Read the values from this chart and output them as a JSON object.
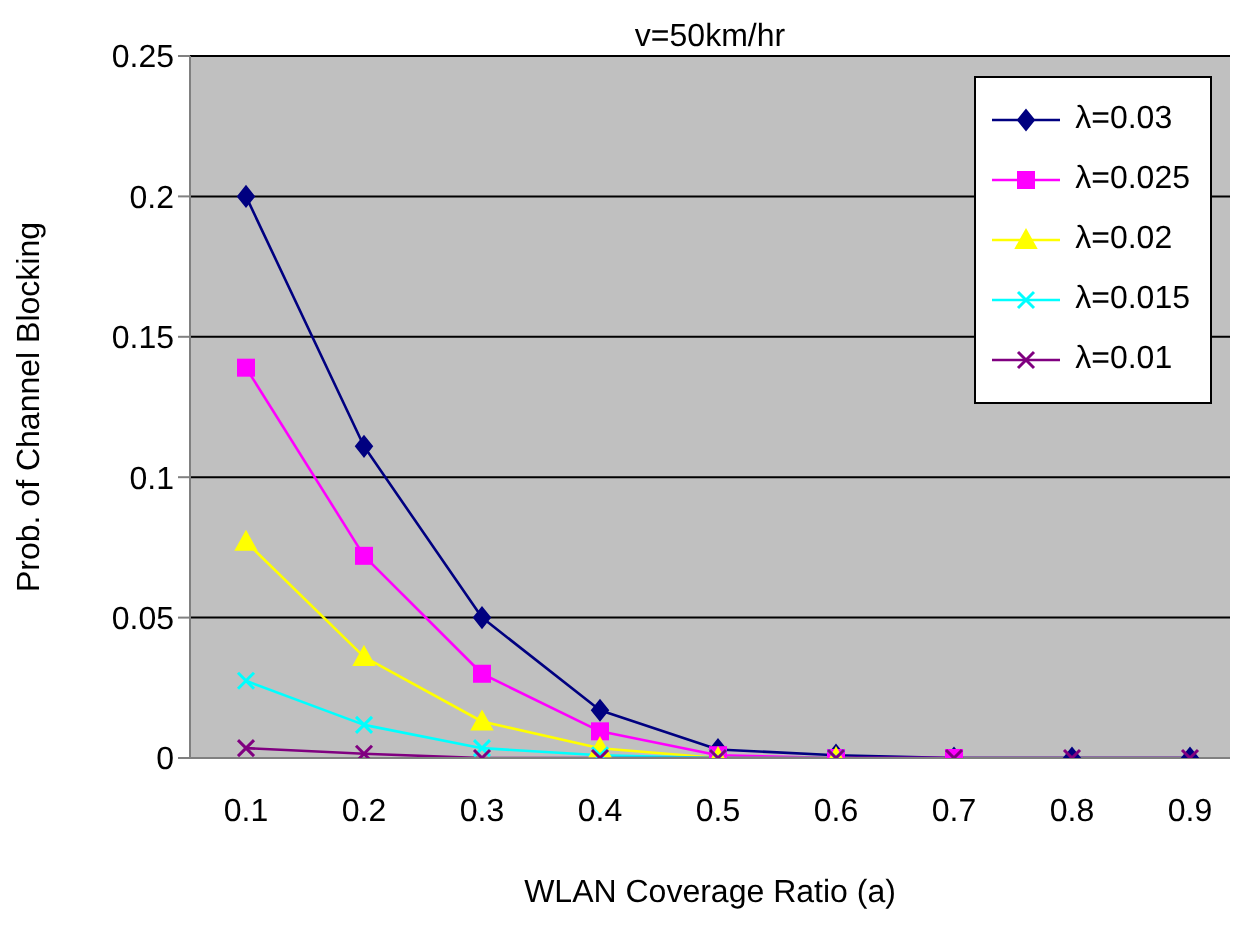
{
  "chart_data": {
    "type": "line",
    "title": "v=50km/hr",
    "xlabel": "WLAN Coverage Ratio (a)",
    "ylabel": "Prob. of Channel Blocking",
    "categories": [
      "0.1",
      "0.2",
      "0.3",
      "0.4",
      "0.5",
      "0.6",
      "0.7",
      "0.8",
      "0.9"
    ],
    "series": [
      {
        "name": "λ=0.03",
        "color": "#000080",
        "marker": "diamond",
        "values": [
          0.2,
          0.111,
          0.05,
          0.017,
          0.003,
          0.001,
          0,
          0,
          0
        ]
      },
      {
        "name": "λ=0.025",
        "color": "#ff00ff",
        "marker": "square",
        "values": [
          0.139,
          0.072,
          0.03,
          0.0095,
          0.001,
          0,
          0,
          null,
          null
        ]
      },
      {
        "name": "λ=0.02",
        "color": "#ffff00",
        "marker": "triangle",
        "values": [
          0.077,
          0.036,
          0.013,
          0.0035,
          0,
          0,
          null,
          null,
          null
        ]
      },
      {
        "name": "λ=0.015",
        "color": "#00ffff",
        "marker": "cross",
        "values": [
          0.0275,
          0.0118,
          0.0035,
          0.001,
          0,
          0,
          null,
          null,
          null
        ]
      },
      {
        "name": "λ=0.01",
        "color": "#800080",
        "marker": "cross",
        "values": [
          0.0035,
          0.0015,
          0,
          0,
          0,
          0,
          0,
          0,
          0
        ]
      }
    ],
    "ylim": [
      0,
      0.25
    ],
    "yticks": [
      0,
      0.05,
      0.1,
      0.15,
      0.2,
      0.25
    ],
    "grid": "y",
    "legend": "top right",
    "line_style": "solid"
  }
}
